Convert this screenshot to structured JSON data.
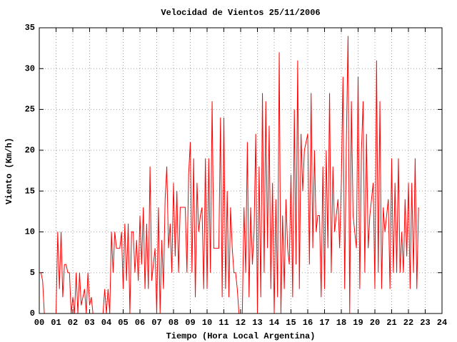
{
  "chart_data": {
    "type": "line",
    "title": "Velocidad de Vientos 25/11/2006",
    "x_label": "Tiempo (Hora Local Argentina)",
    "y_label": "Viento (Km/h)",
    "color": "#ff0000",
    "grid": true,
    "xlim": [
      0,
      24
    ],
    "ylim": [
      0,
      35
    ],
    "xticks": [
      {
        "value": 0,
        "label": "00"
      },
      {
        "value": 1,
        "label": "01"
      },
      {
        "value": 2,
        "label": "02"
      },
      {
        "value": 3,
        "label": "03"
      },
      {
        "value": 4,
        "label": "04"
      },
      {
        "value": 5,
        "label": "05"
      },
      {
        "value": 6,
        "label": "06"
      },
      {
        "value": 7,
        "label": "07"
      },
      {
        "value": 8,
        "label": "08"
      },
      {
        "value": 9,
        "label": "09"
      },
      10,
      11,
      12,
      13,
      14,
      15,
      16,
      17,
      18,
      19,
      20,
      21,
      22,
      23,
      24
    ],
    "yticks": [
      0,
      5,
      10,
      15,
      20,
      25,
      30,
      35
    ],
    "x": [
      0,
      0.1,
      0.2,
      0.3,
      0.4,
      0.5,
      0.6,
      0.7,
      0.8,
      0.9,
      1,
      1.1,
      1.2,
      1.3,
      1.4,
      1.5,
      1.6,
      1.7,
      1.8,
      1.9,
      2,
      2.1,
      2.2,
      2.3,
      2.4,
      2.5,
      2.6,
      2.7,
      2.8,
      2.9,
      3,
      3.1,
      3.2,
      3.3,
      3.4,
      3.5,
      3.6,
      3.7,
      3.8,
      3.9,
      4,
      4.1,
      4.2,
      4.3,
      4.4,
      4.5,
      4.6,
      4.7,
      4.8,
      4.9,
      5,
      5.1,
      5.2,
      5.3,
      5.4,
      5.5,
      5.6,
      5.7,
      5.8,
      5.9,
      6,
      6.1,
      6.2,
      6.3,
      6.4,
      6.5,
      6.6,
      6.7,
      6.8,
      6.9,
      7,
      7.1,
      7.2,
      7.3,
      7.4,
      7.5,
      7.6,
      7.7,
      7.8,
      7.9,
      8,
      8.1,
      8.2,
      8.3,
      8.4,
      8.5,
      8.6,
      8.7,
      8.8,
      8.9,
      9,
      9.1,
      9.2,
      9.3,
      9.4,
      9.5,
      9.6,
      9.7,
      9.8,
      9.9,
      10,
      10.1,
      10.2,
      10.3,
      10.4,
      10.5,
      10.6,
      10.7,
      10.8,
      10.9,
      11,
      11.1,
      11.2,
      11.3,
      11.4,
      11.5,
      11.6,
      11.7,
      11.8,
      11.9,
      12,
      12.1,
      12.2,
      12.3,
      12.4,
      12.5,
      12.6,
      12.7,
      12.8,
      12.9,
      13,
      13.1,
      13.2,
      13.3,
      13.4,
      13.5,
      13.6,
      13.7,
      13.8,
      13.9,
      14,
      14.1,
      14.2,
      14.3,
      14.4,
      14.5,
      14.6,
      14.7,
      14.8,
      14.9,
      15,
      15.1,
      15.2,
      15.3,
      15.4,
      15.5,
      15.6,
      15.7,
      15.8,
      15.9,
      16,
      16.1,
      16.2,
      16.3,
      16.4,
      16.5,
      16.6,
      16.7,
      16.8,
      16.9,
      17,
      17.1,
      17.2,
      17.3,
      17.4,
      17.5,
      17.6,
      17.7,
      17.8,
      17.9,
      18,
      18.1,
      18.2,
      18.3,
      18.4,
      18.5,
      18.6,
      18.7,
      18.8,
      18.9,
      19,
      19.1,
      19.2,
      19.3,
      19.4,
      19.5,
      19.6,
      19.7,
      19.8,
      19.9,
      20,
      20.1,
      20.2,
      20.3,
      20.4,
      20.5,
      20.6,
      20.7,
      20.8,
      20.9,
      21,
      21.1,
      21.2,
      21.3,
      21.4,
      21.5,
      21.6,
      21.7,
      21.8,
      21.9,
      22,
      22.1,
      22.2,
      22.3,
      22.4,
      22.5,
      22.6
    ],
    "values": [
      5,
      5,
      4,
      0,
      0,
      0,
      0,
      0,
      0,
      0,
      0,
      10,
      3,
      10,
      2,
      6,
      6,
      5,
      5,
      0,
      2,
      0,
      5,
      0,
      5,
      1,
      2,
      3,
      0,
      5,
      1,
      2,
      0,
      0,
      0,
      0,
      0,
      0,
      0,
      3,
      0,
      3,
      0,
      10,
      5,
      10,
      8,
      8,
      8,
      10,
      3,
      11,
      4,
      11,
      0,
      10,
      10,
      5,
      9,
      4,
      12,
      6,
      13,
      3,
      11,
      3,
      18,
      4,
      6,
      8,
      0,
      13,
      0,
      9,
      3,
      14,
      18,
      8,
      11,
      5,
      16,
      7,
      15,
      5,
      13,
      13,
      13,
      13,
      5,
      17,
      21,
      5,
      19,
      2,
      16,
      10,
      12,
      13,
      3,
      19,
      3,
      19,
      5,
      26,
      8,
      8,
      8,
      8,
      24,
      2,
      24,
      3,
      15,
      2,
      13,
      8,
      5,
      5,
      3,
      0,
      0,
      0,
      13,
      5,
      21,
      2,
      13,
      6,
      10,
      22,
      0,
      18,
      2,
      27,
      5,
      26,
      8,
      23,
      3,
      16,
      0,
      14,
      2,
      32,
      0,
      12,
      3,
      14,
      8,
      6,
      17,
      2,
      25,
      6,
      31,
      3,
      22,
      15,
      20,
      21,
      22,
      6,
      27,
      8,
      20,
      10,
      12,
      12,
      2,
      18,
      3,
      20,
      8,
      27,
      5,
      18,
      10,
      12,
      14,
      8,
      16,
      29,
      3,
      21,
      34,
      0,
      26,
      12,
      10,
      8,
      29,
      3,
      20,
      26,
      5,
      22,
      8,
      12,
      14,
      16,
      3,
      31,
      5,
      26,
      3,
      13,
      10,
      12,
      14,
      3,
      19,
      5,
      16,
      5,
      19,
      5,
      10,
      5,
      14,
      7,
      16,
      3,
      16,
      5,
      19,
      3,
      13
    ]
  }
}
